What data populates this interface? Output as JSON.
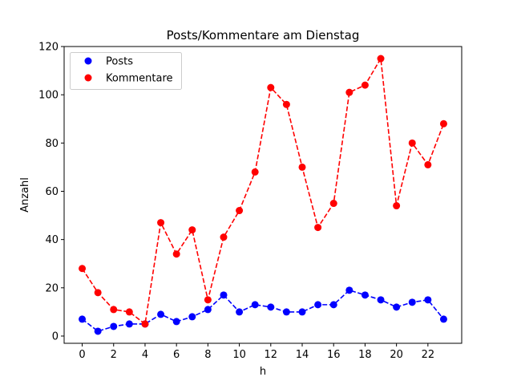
{
  "chart_data": {
    "type": "line",
    "title": "Posts/Kommentare am Dienstag",
    "xlabel": "h",
    "ylabel": "Anzahl",
    "xlim": [
      -1.15,
      24.15
    ],
    "ylim": [
      -3.0,
      120.0
    ],
    "xticks": [
      0,
      2,
      4,
      6,
      8,
      10,
      12,
      14,
      16,
      18,
      20,
      22
    ],
    "yticks": [
      0,
      20,
      40,
      60,
      80,
      100,
      120
    ],
    "legend_position": "top-left",
    "grid": false,
    "x": [
      0,
      1,
      2,
      3,
      4,
      5,
      6,
      7,
      8,
      9,
      10,
      11,
      12,
      13,
      14,
      15,
      16,
      17,
      18,
      19,
      20,
      21,
      22,
      23
    ],
    "series": [
      {
        "name": "Posts",
        "color": "#0000ff",
        "line_style": "dashed",
        "marker": "circle",
        "values": [
          7,
          2,
          4,
          5,
          5,
          9,
          6,
          8,
          11,
          17,
          10,
          13,
          12,
          10,
          10,
          13,
          13,
          19,
          17,
          15,
          12,
          14,
          15,
          7
        ]
      },
      {
        "name": "Kommentare",
        "color": "#ff0000",
        "line_style": "dashed",
        "marker": "circle",
        "values": [
          28,
          18,
          11,
          10,
          5,
          47,
          34,
          44,
          15,
          41,
          52,
          68,
          103,
          96,
          70,
          45,
          55,
          101,
          104,
          115,
          54,
          80,
          71,
          88
        ]
      }
    ]
  }
}
